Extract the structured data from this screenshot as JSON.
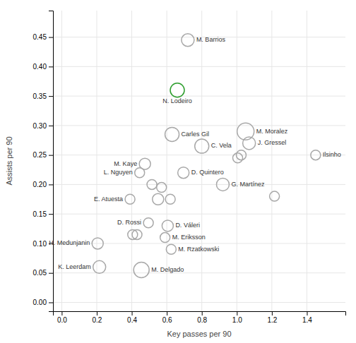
{
  "chart_data": {
    "type": "scatter",
    "x": [
      0.72,
      0.66,
      0.63,
      0.8,
      1.05,
      1.07,
      1.45,
      0.475,
      0.445,
      0.695,
      0.92,
      0.39,
      0.495,
      0.605,
      0.59,
      0.625,
      0.205,
      0.215,
      0.455,
      0.515,
      0.57,
      0.55,
      0.62,
      0.43,
      0.405,
      1.005,
      1.025,
      1.215
    ],
    "values": [
      0.445,
      0.36,
      0.285,
      0.265,
      0.29,
      0.27,
      0.25,
      0.235,
      0.22,
      0.22,
      0.2,
      0.175,
      0.135,
      0.13,
      0.11,
      0.09,
      0.1,
      0.06,
      0.055,
      0.2,
      0.195,
      0.175,
      0.175,
      0.115,
      0.115,
      0.245,
      0.25,
      0.18
    ],
    "sizes": [
      9,
      10,
      10,
      10,
      12,
      9,
      7,
      8,
      7,
      8,
      9,
      7,
      7,
      8,
      7,
      7,
      8,
      9,
      11,
      7,
      7,
      8,
      7,
      7,
      7,
      7,
      7,
      7
    ],
    "labels": [
      "M. Barrios",
      "N. Lodeiro",
      "Carles Gil",
      "C. Vela",
      "M. Moralez",
      "J. Gressel",
      "Ilsinho",
      "M. Kaye",
      "L. Nguyen",
      "D. Quintero",
      "G. Martínez",
      "E. Atuesta",
      "D. Rossi",
      "D. Váleri",
      "M. Eriksson",
      "M. Rzatkowski",
      "H. Medunjanin",
      "K. Leerdam",
      "M. Delgado",
      null,
      null,
      null,
      null,
      null,
      null,
      null,
      null,
      null
    ],
    "colors": [
      "#a8a8a8",
      "#2e9e2e",
      "#a8a8a8",
      "#a8a8a8",
      "#a8a8a8",
      "#a8a8a8",
      "#a8a8a8",
      "#a8a8a8",
      "#a8a8a8",
      "#a8a8a8",
      "#a8a8a8",
      "#a8a8a8",
      "#a8a8a8",
      "#a8a8a8",
      "#a8a8a8",
      "#a8a8a8",
      "#a8a8a8",
      "#a8a8a8",
      "#a8a8a8",
      "#a8a8a8",
      "#a8a8a8",
      "#a8a8a8",
      "#a8a8a8",
      "#a8a8a8",
      "#a8a8a8",
      "#a8a8a8",
      "#a8a8a8",
      "#a8a8a8"
    ],
    "xlabel": "Key passes per 90",
    "ylabel": "Assists per 90",
    "xlim": [
      -0.05,
      1.62
    ],
    "ylim": [
      -0.015,
      0.495
    ],
    "xticks": [
      {
        "value": 0.0,
        "label": "0.0"
      },
      0.2,
      0.4,
      0.6,
      0.8,
      {
        "value": 1.0,
        "label": "1.0"
      },
      1.2,
      1.4
    ],
    "yticks": [
      {
        "value": 0.0,
        "label": "0.00"
      },
      0.05,
      {
        "value": 0.1,
        "label": "0.10"
      },
      0.15,
      {
        "value": 0.2,
        "label": "0.20"
      },
      0.25,
      {
        "value": 0.3,
        "label": "0.30"
      },
      0.35,
      {
        "value": 0.4,
        "label": "0.40"
      },
      0.45
    ],
    "grid": true
  }
}
